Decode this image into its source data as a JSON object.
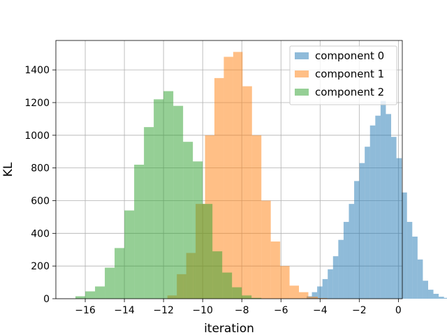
{
  "chart_data": {
    "type": "histogram",
    "xlabel": "iteration",
    "ylabel": "KL",
    "xlim": [
      -17.5,
      0.2
    ],
    "ylim": [
      0,
      1580
    ],
    "xticks": [
      -16,
      -14,
      -12,
      -10,
      -8,
      -6,
      -4,
      -2,
      0
    ],
    "yticks": [
      0,
      200,
      400,
      600,
      800,
      1000,
      1200,
      1400
    ],
    "xtick_labels": [
      "−16",
      "−14",
      "−12",
      "−10",
      "−8",
      "−6",
      "−4",
      "−2",
      "0"
    ],
    "ytick_labels": [
      "0",
      "200",
      "400",
      "600",
      "800",
      "1000",
      "1200",
      "1400"
    ],
    "grid": true,
    "legend_position": "top-right",
    "alpha": 0.5,
    "series": [
      {
        "name": "component 0",
        "color": "#1f77b4",
        "bin_start": -4.96,
        "bin_width": 0.27,
        "counts": [
          2,
          15,
          40,
          75,
          120,
          180,
          260,
          360,
          470,
          580,
          720,
          830,
          930,
          1060,
          1120,
          1210,
          1130,
          990,
          860,
          650,
          470,
          380,
          240,
          110,
          55,
          30,
          12,
          5
        ]
      },
      {
        "name": "component 1",
        "color": "#ff7f0e",
        "bin_start": -11.8,
        "bin_width": 0.48,
        "counts": [
          20,
          150,
          280,
          580,
          1000,
          1350,
          1480,
          1510,
          1300,
          1000,
          600,
          350,
          200,
          80,
          40,
          12,
          4
        ]
      },
      {
        "name": "component 2",
        "color": "#2ca02c",
        "bin_start": -16.5,
        "bin_width": 0.5,
        "counts": [
          15,
          45,
          75,
          190,
          310,
          540,
          820,
          1050,
          1220,
          1270,
          1180,
          960,
          840,
          580,
          290,
          160,
          70,
          20,
          5
        ]
      }
    ]
  }
}
